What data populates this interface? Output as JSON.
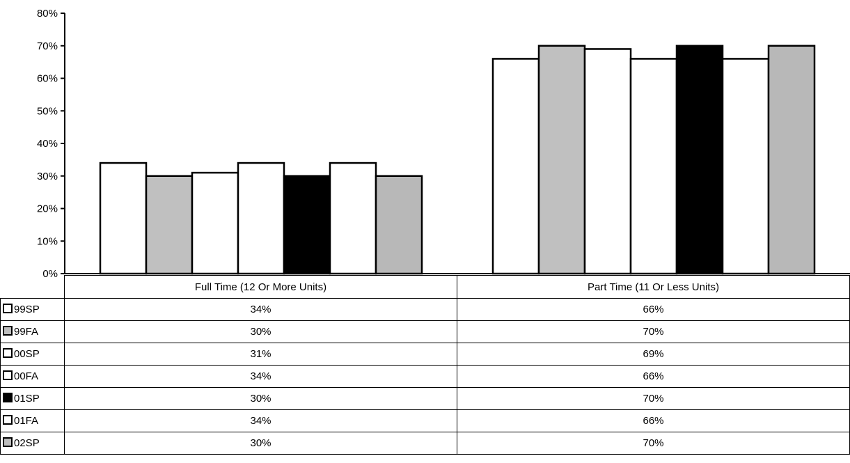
{
  "chart_data": {
    "type": "bar",
    "categories": [
      "Full Time (12 Or More Units)",
      "Part Time (11 Or Less Units)"
    ],
    "series": [
      {
        "name": "99SP",
        "values": [
          34,
          66
        ],
        "fill": "#ffffff",
        "key": "hollow"
      },
      {
        "name": "99FA",
        "values": [
          30,
          70
        ],
        "fill": "#c0c0c0",
        "key": "dotted"
      },
      {
        "name": "00SP",
        "values": [
          31,
          69
        ],
        "fill": "#ffffff",
        "key": "hollow"
      },
      {
        "name": "00FA",
        "values": [
          34,
          66
        ],
        "fill": "#ffffff",
        "key": "hollow"
      },
      {
        "name": "01SP",
        "values": [
          30,
          70
        ],
        "fill": "#000000",
        "key": "solid"
      },
      {
        "name": "01FA",
        "values": [
          34,
          66
        ],
        "fill": "#ffffff",
        "key": "hollow"
      },
      {
        "name": "02SP",
        "values": [
          30,
          70
        ],
        "fill": "#b8b8b8",
        "key": "dotted"
      }
    ],
    "value_labels": [
      [
        "34%",
        "66%"
      ],
      [
        "30%",
        "70%"
      ],
      [
        "31%",
        "69%"
      ],
      [
        "34%",
        "66%"
      ],
      [
        "30%",
        "70%"
      ],
      [
        "34%",
        "66%"
      ],
      [
        "30%",
        "70%"
      ]
    ],
    "yticks": [
      "0%",
      "10%",
      "20%",
      "30%",
      "40%",
      "50%",
      "60%",
      "70%",
      "80%"
    ],
    "ylim": [
      0,
      80
    ],
    "grid": false,
    "legend": "data-table"
  }
}
